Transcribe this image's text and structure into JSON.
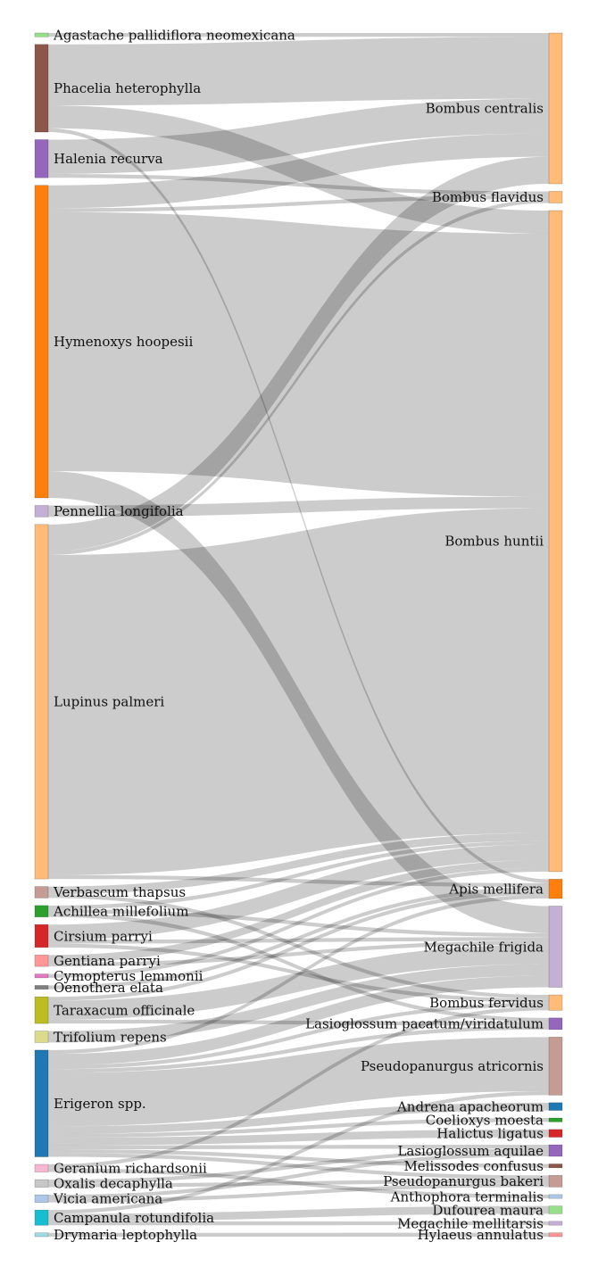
{
  "chart_data": {
    "type": "sankey",
    "title": "",
    "sources": [
      {
        "id": "agastache",
        "name": "Agastache pallidiflora neomexicana",
        "color": "#98df8a"
      },
      {
        "id": "phacelia",
        "name": "Phacelia heterophylla",
        "color": "#8c564b"
      },
      {
        "id": "halenia",
        "name": "Halenia recurva",
        "color": "#9467bd"
      },
      {
        "id": "hymenoxys",
        "name": "Hymenoxys hoopesii",
        "color": "#ff7f0e"
      },
      {
        "id": "pennellia",
        "name": "Pennellia longifolia",
        "color": "#c5b0d5"
      },
      {
        "id": "lupinus",
        "name": "Lupinus palmeri",
        "color": "#ffbb78"
      },
      {
        "id": "verbascum",
        "name": "Verbascum thapsus",
        "color": "#c49c94"
      },
      {
        "id": "achillea",
        "name": "Achillea millefolium",
        "color": "#2ca02c"
      },
      {
        "id": "cirsium",
        "name": "Cirsium parryi",
        "color": "#d62728"
      },
      {
        "id": "gentiana",
        "name": "Gentiana parryi",
        "color": "#ff9896"
      },
      {
        "id": "cymopterus",
        "name": "Cymopterus lemmonii",
        "color": "#e377c2"
      },
      {
        "id": "oenothera",
        "name": "Oenothera elata",
        "color": "#7f7f7f"
      },
      {
        "id": "taraxacum",
        "name": "Taraxacum officinale",
        "color": "#bcbd22"
      },
      {
        "id": "trifolium",
        "name": "Trifolium repens",
        "color": "#dbdb8d"
      },
      {
        "id": "erigeron",
        "name": "Erigeron spp.",
        "color": "#1f77b4"
      },
      {
        "id": "geranium",
        "name": "Geranium richardsonii",
        "color": "#f7b6d2"
      },
      {
        "id": "oxalis",
        "name": "Oxalis decaphylla",
        "color": "#c7c7c7"
      },
      {
        "id": "vicia",
        "name": "Vicia americana",
        "color": "#aec7e8"
      },
      {
        "id": "campanula",
        "name": "Campanula rotundifolia",
        "color": "#17becf"
      },
      {
        "id": "drymaria",
        "name": "Drymaria leptophylla",
        "color": "#9edae5"
      }
    ],
    "targets": [
      {
        "id": "b_centralis",
        "name": "Bombus centralis",
        "color": "#ffbb78"
      },
      {
        "id": "b_flavidus",
        "name": "Bombus flavidus",
        "color": "#ffbb78"
      },
      {
        "id": "b_huntii",
        "name": "Bombus huntii",
        "color": "#ffbb78"
      },
      {
        "id": "apis",
        "name": "Apis mellifera",
        "color": "#ff7f0e"
      },
      {
        "id": "megachile_f",
        "name": "Megachile frigida",
        "color": "#c5b0d5"
      },
      {
        "id": "b_fervidus",
        "name": "Bombus fervidus",
        "color": "#ffbb78"
      },
      {
        "id": "lasio_p",
        "name": "Lasioglossum pacatum/viridatulum",
        "color": "#9467bd"
      },
      {
        "id": "pseudo_a",
        "name": "Pseudopanurgus atricornis",
        "color": "#c49c94"
      },
      {
        "id": "andrena",
        "name": "Andrena apacheorum",
        "color": "#1f77b4"
      },
      {
        "id": "coelioxys",
        "name": "Coelioxys moesta",
        "color": "#2ca02c"
      },
      {
        "id": "halictus",
        "name": "Halictus ligatus",
        "color": "#d62728"
      },
      {
        "id": "lasio_a",
        "name": "Lasioglossum aquilae",
        "color": "#9467bd"
      },
      {
        "id": "melissodes",
        "name": "Melissodes confusus",
        "color": "#8c564b"
      },
      {
        "id": "pseudo_b",
        "name": "Pseudopanurgus bakeri",
        "color": "#c49c94"
      },
      {
        "id": "anthophora",
        "name": "Anthophora terminalis",
        "color": "#aec7e8"
      },
      {
        "id": "dufourea",
        "name": "Dufourea maura",
        "color": "#98df8a"
      },
      {
        "id": "megachile_m",
        "name": "Megachile mellitarsis",
        "color": "#c5b0d5"
      },
      {
        "id": "hylaeus",
        "name": "Hylaeus annulatus",
        "color": "#ff9896"
      }
    ],
    "links": [
      {
        "source": "agastache",
        "target": "b_centralis",
        "value": 1
      },
      {
        "source": "phacelia",
        "target": "b_centralis",
        "value": 16
      },
      {
        "source": "phacelia",
        "target": "b_huntii",
        "value": 6
      },
      {
        "source": "phacelia",
        "target": "apis",
        "value": 1
      },
      {
        "source": "halenia",
        "target": "b_centralis",
        "value": 9
      },
      {
        "source": "halenia",
        "target": "b_flavidus",
        "value": 1
      },
      {
        "source": "hymenoxys",
        "target": "b_centralis",
        "value": 6
      },
      {
        "source": "hymenoxys",
        "target": "b_flavidus",
        "value": 1
      },
      {
        "source": "hymenoxys",
        "target": "b_huntii",
        "value": 68
      },
      {
        "source": "hymenoxys",
        "target": "megachile_f",
        "value": 7
      },
      {
        "source": "pennellia",
        "target": "b_huntii",
        "value": 3
      },
      {
        "source": "lupinus",
        "target": "b_centralis",
        "value": 7
      },
      {
        "source": "lupinus",
        "target": "b_huntii",
        "value": 84
      },
      {
        "source": "lupinus",
        "target": "b_flavidus",
        "value": 1
      },
      {
        "source": "lupinus",
        "target": "apis",
        "value": 1
      },
      {
        "source": "verbascum",
        "target": "b_huntii",
        "value": 2
      },
      {
        "source": "verbascum",
        "target": "b_fervidus",
        "value": 1
      },
      {
        "source": "achillea",
        "target": "b_huntii",
        "value": 1
      },
      {
        "source": "achillea",
        "target": "megachile_f",
        "value": 1
      },
      {
        "source": "achillea",
        "target": "lasio_p",
        "value": 1
      },
      {
        "source": "cirsium",
        "target": "b_huntii",
        "value": 4
      },
      {
        "source": "cirsium",
        "target": "b_fervidus",
        "value": 1
      },
      {
        "source": "cirsium",
        "target": "megachile_f",
        "value": 1
      },
      {
        "source": "gentiana",
        "target": "b_huntii",
        "value": 2
      },
      {
        "source": "gentiana",
        "target": "megachile_f",
        "value": 1
      },
      {
        "source": "cymopterus",
        "target": "b_huntii",
        "value": 1
      },
      {
        "source": "oenothera",
        "target": "apis",
        "value": 1
      },
      {
        "source": "taraxacum",
        "target": "megachile_f",
        "value": 5
      },
      {
        "source": "taraxacum",
        "target": "apis",
        "value": 1
      },
      {
        "source": "taraxacum",
        "target": "lasio_p",
        "value": 1
      },
      {
        "source": "trifolium",
        "target": "megachile_f",
        "value": 3
      },
      {
        "source": "erigeron",
        "target": "pseudo_a",
        "value": 14
      },
      {
        "source": "erigeron",
        "target": "megachile_f",
        "value": 3
      },
      {
        "source": "erigeron",
        "target": "andrena",
        "value": 2
      },
      {
        "source": "erigeron",
        "target": "coelioxys",
        "value": 1
      },
      {
        "source": "erigeron",
        "target": "halictus",
        "value": 2
      },
      {
        "source": "erigeron",
        "target": "lasio_a",
        "value": 1
      },
      {
        "source": "erigeron",
        "target": "melissodes",
        "value": 1
      },
      {
        "source": "erigeron",
        "target": "pseudo_b",
        "value": 1
      },
      {
        "source": "erigeron",
        "target": "apis",
        "value": 1
      },
      {
        "source": "erigeron",
        "target": "b_fervidus",
        "value": 1
      },
      {
        "source": "erigeron",
        "target": "lasio_p",
        "value": 1
      },
      {
        "source": "geranium",
        "target": "anthophora",
        "value": 1
      },
      {
        "source": "geranium",
        "target": "b_fervidus",
        "value": 1
      },
      {
        "source": "oxalis",
        "target": "pseudo_b",
        "value": 1
      },
      {
        "source": "oxalis",
        "target": "lasio_a",
        "value": 1
      },
      {
        "source": "vicia",
        "target": "pseudo_b",
        "value": 1
      },
      {
        "source": "vicia",
        "target": "lasio_a",
        "value": 1
      },
      {
        "source": "campanula",
        "target": "dufourea",
        "value": 2
      },
      {
        "source": "campanula",
        "target": "megachile_m",
        "value": 1
      },
      {
        "source": "campanula",
        "target": "pseudo_a",
        "value": 1
      },
      {
        "source": "drymaria",
        "target": "hylaeus",
        "value": 1
      }
    ]
  }
}
